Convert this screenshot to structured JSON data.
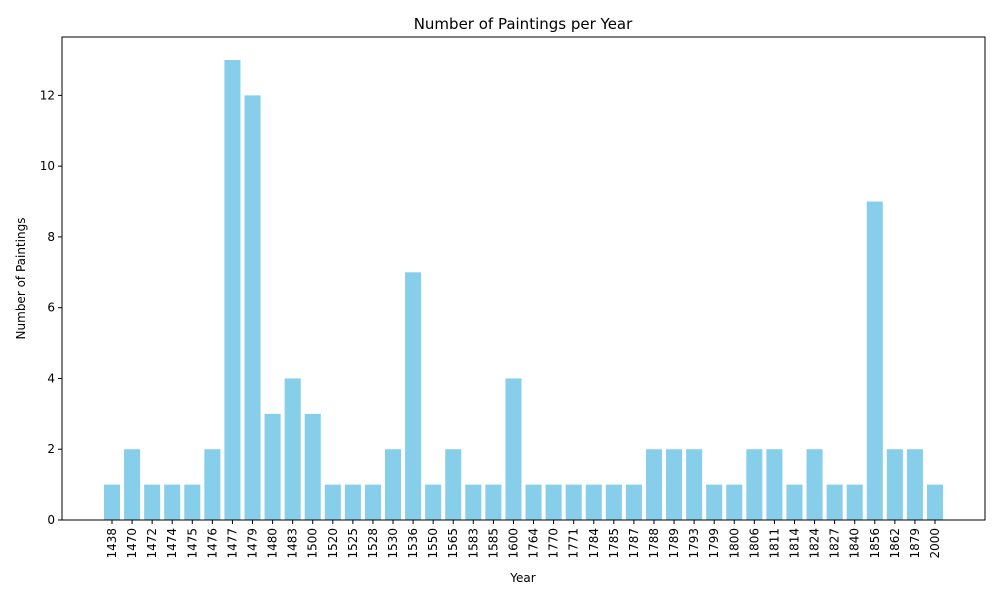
{
  "chart_data": {
    "type": "bar",
    "title": "Number of Paintings per Year",
    "xlabel": "Year",
    "ylabel": "Number of Paintings",
    "categories": [
      "1438",
      "1470",
      "1472",
      "1474",
      "1475",
      "1476",
      "1477",
      "1479",
      "1480",
      "1483",
      "1500",
      "1520",
      "1525",
      "1528",
      "1530",
      "1536",
      "1550",
      "1565",
      "1583",
      "1585",
      "1600",
      "1764",
      "1770",
      "1771",
      "1784",
      "1785",
      "1787",
      "1788",
      "1789",
      "1793",
      "1799",
      "1800",
      "1806",
      "1811",
      "1814",
      "1824",
      "1827",
      "1840",
      "1856",
      "1862",
      "1879",
      "2000"
    ],
    "values": [
      1,
      2,
      1,
      1,
      1,
      2,
      13,
      12,
      3,
      4,
      3,
      1,
      1,
      1,
      2,
      7,
      1,
      2,
      1,
      1,
      4,
      1,
      1,
      1,
      1,
      1,
      1,
      2,
      2,
      2,
      1,
      1,
      2,
      2,
      1,
      2,
      1,
      1,
      9,
      2,
      2,
      1
    ],
    "ylim": [
      0,
      13.65
    ],
    "yticks": [
      0,
      2,
      4,
      6,
      8,
      10,
      12
    ],
    "grid": false,
    "bar_color": "#87ceeb"
  }
}
